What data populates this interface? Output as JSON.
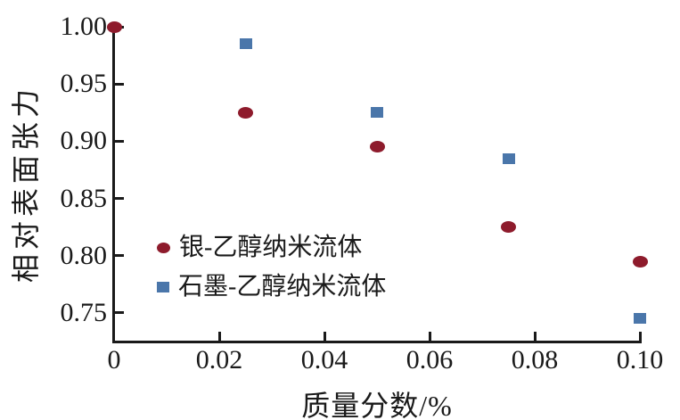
{
  "figure": {
    "background": "#ffffff",
    "axis_color": "#1a1a1a",
    "text_color": "#1a1a1a"
  },
  "chart_data": {
    "type": "scatter",
    "title": "",
    "xlabel": "质量分数/%",
    "ylabel": "相对表面张力",
    "xlim": [
      0,
      0.1
    ],
    "ylim": [
      0.725,
      1.0
    ],
    "x_ticks": [
      0,
      0.02,
      0.04,
      0.06,
      0.08,
      0.1
    ],
    "x_tick_labels": [
      "0",
      "0.02",
      "0.04",
      "0.06",
      "0.08",
      "0.10"
    ],
    "y_ticks": [
      0.75,
      0.8,
      0.85,
      0.9,
      0.95,
      1.0
    ],
    "y_tick_labels": [
      "0.75",
      "0.80",
      "0.85",
      "0.90",
      "0.95",
      "1.00"
    ],
    "grid": false,
    "legend_position": "inside lower-left",
    "series": [
      {
        "name": "银-乙醇纳米流体",
        "marker": "circle",
        "color": "#8e1b2c",
        "x": [
          0,
          0.025,
          0.05,
          0.075,
          0.1
        ],
        "y": [
          1.0,
          0.925,
          0.895,
          0.825,
          0.795
        ]
      },
      {
        "name": "石墨-乙醇纳米流体",
        "marker": "square",
        "color": "#4a76aa",
        "x": [
          0.025,
          0.05,
          0.075,
          0.1
        ],
        "y": [
          0.985,
          0.925,
          0.885,
          0.745
        ]
      }
    ]
  }
}
